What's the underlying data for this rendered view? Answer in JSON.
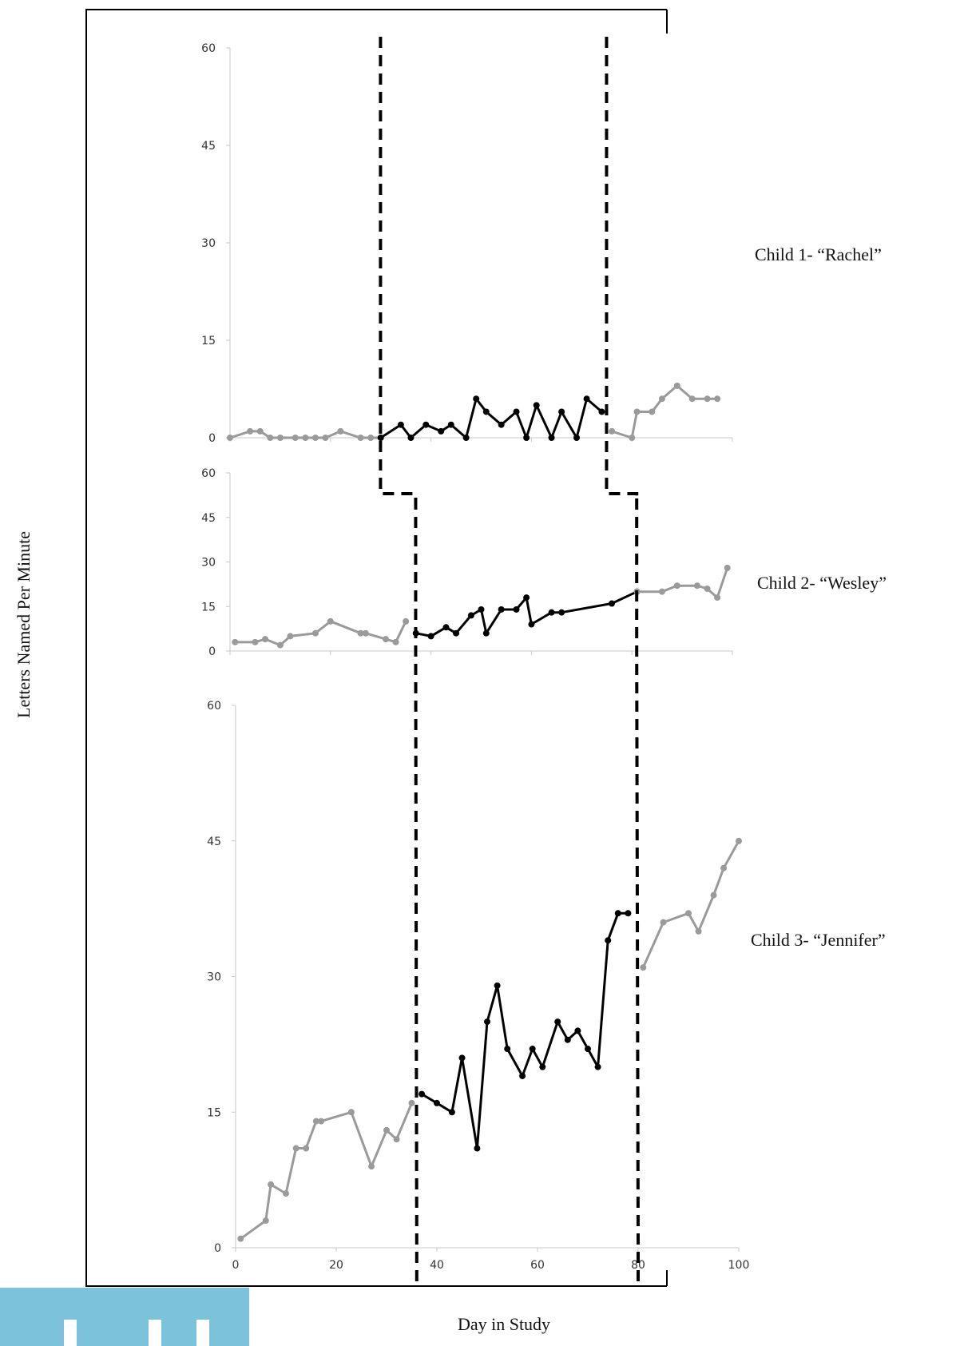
{
  "figure": {
    "y_axis_label": "Letters Named Per Minute",
    "x_axis_label": "Day in Study"
  },
  "colors": {
    "baseline": "#9a9a9a",
    "intervention": "#000000",
    "axis": "#c8c8c8",
    "frame": "#000000",
    "phase_line": "#000000"
  },
  "chart_data": [
    {
      "type": "line",
      "panel_label": "Child 1- “Rachel”",
      "ylim": [
        0,
        60
      ],
      "yticks": [
        0,
        15,
        30,
        45,
        60
      ],
      "xlim": [
        0,
        100
      ],
      "show_x_tick_labels": false,
      "phase_changes": [
        29,
        74
      ],
      "series": [
        {
          "phase": "baseline",
          "x": [
            0,
            4,
            6,
            8,
            10,
            13,
            15,
            17,
            19,
            22,
            26,
            28,
            30
          ],
          "y": [
            0,
            1,
            1,
            0,
            0,
            0,
            0,
            0,
            0,
            1,
            0,
            0,
            0
          ]
        },
        {
          "phase": "intervention",
          "x": [
            30,
            34,
            36,
            39,
            42,
            44,
            47,
            49,
            51,
            54,
            57,
            59,
            61,
            64,
            66,
            69,
            71,
            74
          ],
          "y": [
            0,
            2,
            0,
            2,
            1,
            2,
            0,
            6,
            4,
            2,
            4,
            0,
            5,
            0,
            4,
            0,
            6,
            4
          ]
        },
        {
          "phase": "return",
          "x": [
            76,
            80,
            81,
            84,
            86,
            89,
            92,
            95,
            97
          ],
          "y": [
            1,
            0,
            4,
            4,
            6,
            8,
            6,
            6,
            6
          ]
        }
      ]
    },
    {
      "type": "line",
      "panel_label": "Child 2- “Wesley”",
      "ylim": [
        0,
        60
      ],
      "yticks": [
        0,
        15,
        30,
        45,
        60
      ],
      "xlim": [
        0,
        100
      ],
      "show_x_tick_labels": false,
      "phase_changes": [
        36,
        80
      ],
      "series": [
        {
          "phase": "baseline",
          "x": [
            1,
            5,
            7,
            10,
            12,
            17,
            20,
            26,
            27,
            31,
            33,
            35
          ],
          "y": [
            3,
            3,
            4,
            2,
            5,
            6,
            10,
            6,
            6,
            4,
            3,
            10
          ]
        },
        {
          "phase": "intervention",
          "x": [
            37,
            40,
            43,
            45,
            48,
            50,
            51,
            54,
            57,
            59,
            60,
            64,
            66,
            76,
            81
          ],
          "y": [
            6,
            5,
            8,
            6,
            12,
            14,
            6,
            14,
            14,
            18,
            9,
            13,
            13,
            16,
            20
          ]
        },
        {
          "phase": "return",
          "x": [
            81,
            86,
            89,
            93,
            95,
            97,
            99
          ],
          "y": [
            20,
            20,
            22,
            22,
            21,
            18,
            28
          ]
        }
      ]
    },
    {
      "type": "line",
      "panel_label": "Child 3- “Jennifer”",
      "ylim": [
        0,
        60
      ],
      "yticks": [
        0,
        15,
        30,
        45,
        60
      ],
      "xlim": [
        0,
        100
      ],
      "xticks": [
        0,
        20,
        40,
        60,
        80,
        100
      ],
      "show_x_tick_labels": true,
      "phase_changes": [
        36,
        80
      ],
      "series": [
        {
          "phase": "baseline",
          "x": [
            1,
            6,
            7,
            10,
            12,
            14,
            16,
            17,
            23,
            27,
            30,
            32,
            35
          ],
          "y": [
            1,
            3,
            7,
            6,
            11,
            11,
            14,
            14,
            15,
            9,
            13,
            12,
            16
          ]
        },
        {
          "phase": "intervention",
          "x": [
            37,
            40,
            43,
            45,
            48,
            50,
            52,
            54,
            57,
            59,
            61,
            64,
            66,
            68,
            70,
            72,
            74,
            76,
            78
          ],
          "y": [
            17,
            16,
            15,
            21,
            11,
            25,
            29,
            22,
            19,
            22,
            20,
            25,
            23,
            24,
            22,
            20,
            34,
            37,
            37
          ]
        },
        {
          "phase": "return",
          "x": [
            81,
            85,
            90,
            92,
            95,
            97,
            100
          ],
          "y": [
            31,
            36,
            37,
            35,
            39,
            42,
            45
          ]
        }
      ]
    }
  ]
}
